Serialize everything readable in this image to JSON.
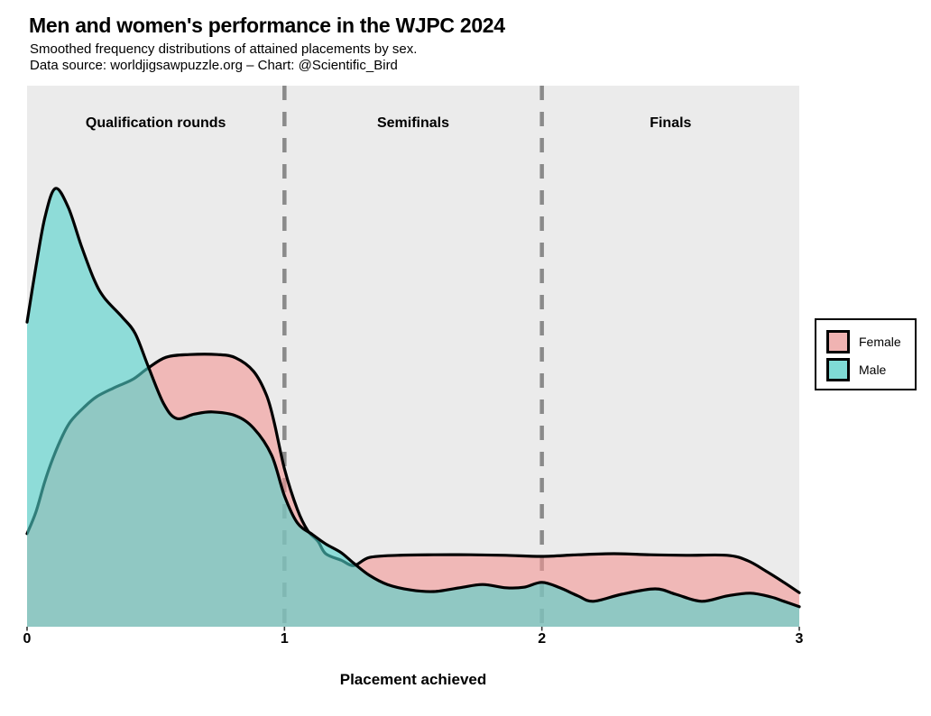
{
  "header": {
    "title": "Men and women's performance in the WJPC 2024",
    "subtitle": "Smoothed frequency distributions of attained placements by sex.",
    "source": "Data source: worldjigsawpuzzle.org – Chart: @Scientific_Bird"
  },
  "chart_data": {
    "type": "area",
    "title": "Men and women's performance in the WJPC 2024",
    "xlabel": "Placement achieved",
    "ylabel": "",
    "xlim": [
      0,
      3
    ],
    "x_ticks": [
      "0",
      "1",
      "2",
      "3"
    ],
    "grid": false,
    "y_axis_shown": false,
    "y_units": "relative smoothed frequency (0-1 of panel height)",
    "panel_bg": "#EBEBEB",
    "legend_position": "right",
    "divider_color": "#8A8A8A",
    "dividers_x": [
      1,
      2
    ],
    "sections": [
      {
        "label": "Qualification rounds",
        "center_x": 0.5
      },
      {
        "label": "Semifinals",
        "center_x": 1.5
      },
      {
        "label": "Finals",
        "center_x": 2.5
      }
    ],
    "series": [
      {
        "name": "Female",
        "fill": "rgba(243,150,148,0.6)",
        "legend_color": "#F0B3B2",
        "stroke": "#000000",
        "x": [
          0,
          0.035,
          0.07,
          0.105,
          0.14,
          0.17,
          0.22,
          0.27,
          0.34,
          0.41,
          0.47,
          0.54,
          0.63,
          0.74,
          0.81,
          0.88,
          0.93,
          0.96,
          1,
          1.05,
          1.09,
          1.13,
          1.16,
          1.22,
          1.27,
          1.33,
          1.44,
          1.58,
          1.72,
          1.86,
          2,
          2.14,
          2.28,
          2.42,
          2.56,
          2.72,
          2.8,
          2.87,
          2.94,
          3
        ],
        "y": [
          0.172,
          0.213,
          0.27,
          0.317,
          0.355,
          0.38,
          0.405,
          0.425,
          0.442,
          0.457,
          0.478,
          0.498,
          0.503,
          0.503,
          0.497,
          0.472,
          0.428,
          0.378,
          0.292,
          0.217,
          0.178,
          0.158,
          0.135,
          0.123,
          0.113,
          0.128,
          0.132,
          0.133,
          0.133,
          0.132,
          0.13,
          0.133,
          0.135,
          0.133,
          0.132,
          0.132,
          0.122,
          0.103,
          0.082,
          0.063
        ]
      },
      {
        "name": "Male",
        "fill": "rgba(80,210,203,0.6)",
        "legend_color": "#7FDBD5",
        "stroke": "#000000",
        "x": [
          0,
          0.035,
          0.07,
          0.11,
          0.16,
          0.21,
          0.26,
          0.3,
          0.37,
          0.42,
          0.47,
          0.53,
          0.58,
          0.65,
          0.72,
          0.81,
          0.88,
          0.95,
          1,
          1.05,
          1.11,
          1.16,
          1.22,
          1.27,
          1.33,
          1.4,
          1.49,
          1.58,
          1.68,
          1.77,
          1.86,
          1.93,
          2,
          2.07,
          2.14,
          2.2,
          2.31,
          2.44,
          2.52,
          2.62,
          2.72,
          2.81,
          2.89,
          2.94,
          3
        ],
        "y": [
          0.563,
          0.667,
          0.758,
          0.81,
          0.775,
          0.705,
          0.642,
          0.608,
          0.572,
          0.542,
          0.482,
          0.413,
          0.385,
          0.393,
          0.397,
          0.39,
          0.367,
          0.317,
          0.242,
          0.192,
          0.17,
          0.153,
          0.137,
          0.117,
          0.095,
          0.078,
          0.068,
          0.065,
          0.072,
          0.078,
          0.072,
          0.073,
          0.082,
          0.072,
          0.057,
          0.047,
          0.06,
          0.07,
          0.06,
          0.047,
          0.057,
          0.062,
          0.055,
          0.047,
          0.037
        ]
      }
    ]
  }
}
